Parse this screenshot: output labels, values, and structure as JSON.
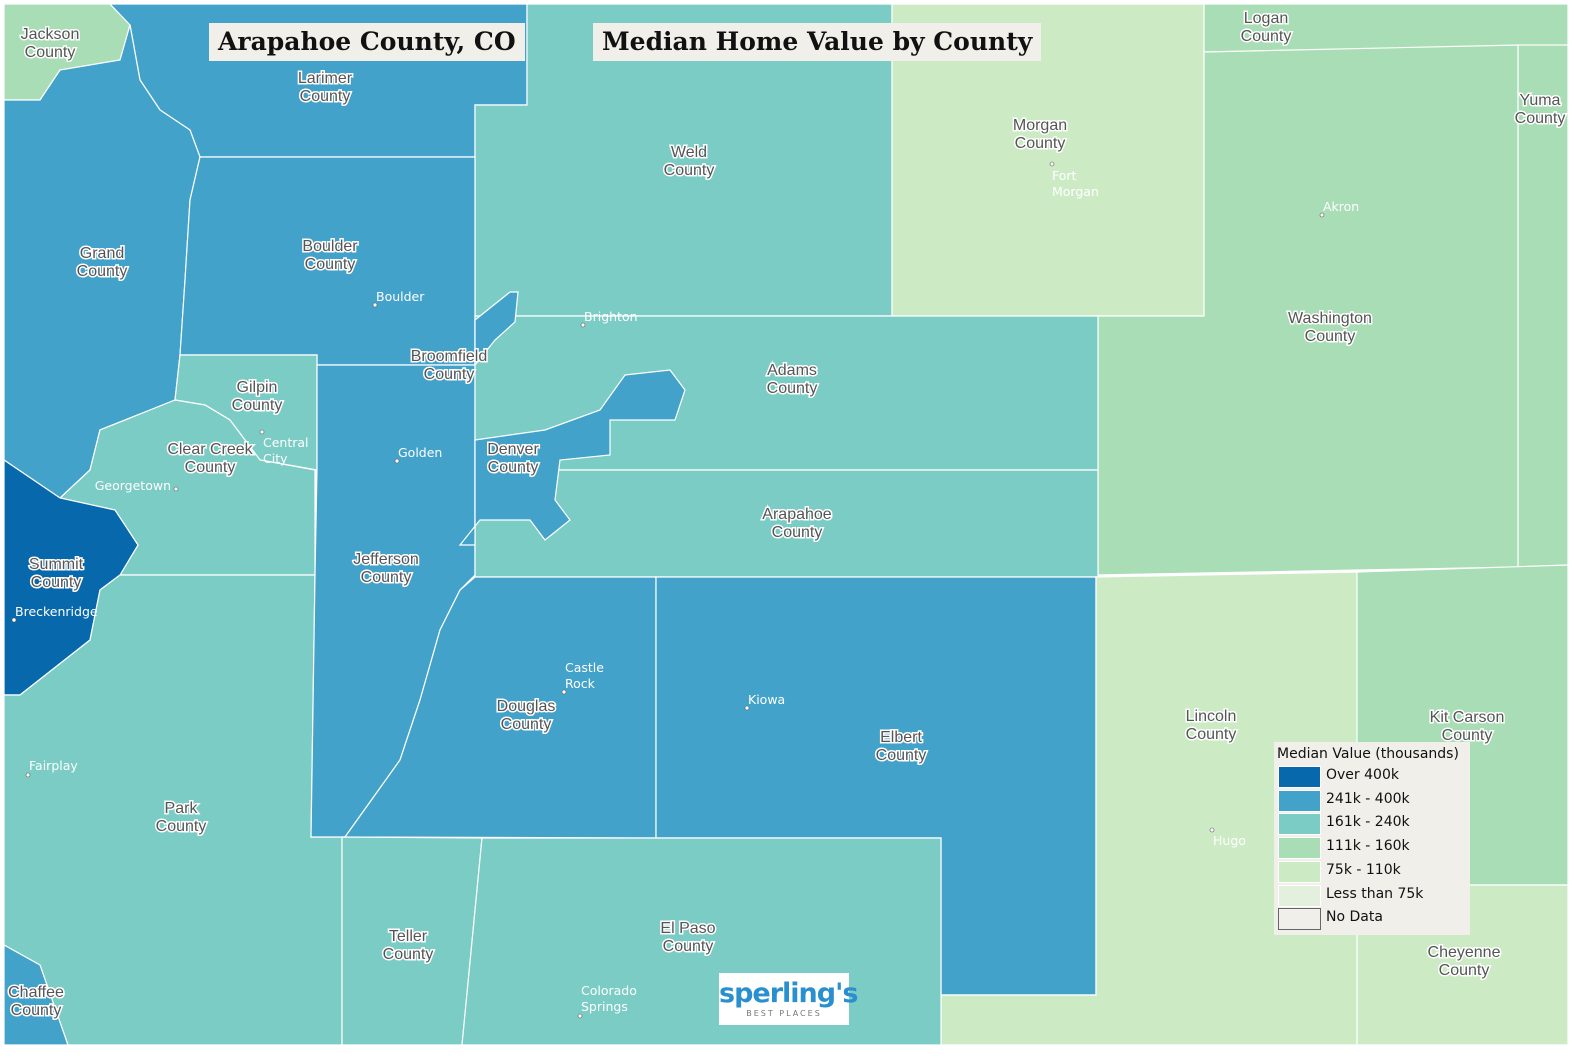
{
  "header": {
    "location_title": "Arapahoe County, CO",
    "map_title": "Median Home Value by County"
  },
  "legend": {
    "title": "Median Value (thousands)",
    "items": [
      {
        "label": "Over 400k",
        "color": "#0868ac"
      },
      {
        "label": "241k - 400k",
        "color": "#43a2ca"
      },
      {
        "label": "161k - 240k",
        "color": "#7bccc4"
      },
      {
        "label": "111k - 160k",
        "color": "#a8ddb5"
      },
      {
        "label": "75k - 110k",
        "color": "#ccebc5"
      },
      {
        "label": "Less than 75k",
        "color": "#e2f0dd"
      },
      {
        "label": "No Data",
        "color": "#f1efe9"
      }
    ]
  },
  "counties": [
    {
      "name": "Jackson County",
      "category": "111k - 160k"
    },
    {
      "name": "Larimer County",
      "category": "241k - 400k"
    },
    {
      "name": "Weld County",
      "category": "161k - 240k"
    },
    {
      "name": "Morgan County",
      "category": "75k - 110k"
    },
    {
      "name": "Logan County",
      "category": "111k - 160k"
    },
    {
      "name": "Yuma County",
      "category": "111k - 160k"
    },
    {
      "name": "Washington County",
      "category": "111k - 160k"
    },
    {
      "name": "Grand County",
      "category": "241k - 400k"
    },
    {
      "name": "Boulder County",
      "category": "241k - 400k"
    },
    {
      "name": "Gilpin County",
      "category": "161k - 240k"
    },
    {
      "name": "Clear Creek County",
      "category": "161k - 240k"
    },
    {
      "name": "Summit County",
      "category": "Over 400k"
    },
    {
      "name": "Park County",
      "category": "161k - 240k"
    },
    {
      "name": "Chaffee County",
      "category": "241k - 400k"
    },
    {
      "name": "Jefferson County",
      "category": "241k - 400k"
    },
    {
      "name": "Adams County",
      "category": "161k - 240k"
    },
    {
      "name": "Arapahoe County",
      "category": "161k - 240k"
    },
    {
      "name": "Denver County",
      "category": "241k - 400k"
    },
    {
      "name": "Broomfield County",
      "category": "241k - 400k"
    },
    {
      "name": "Douglas County",
      "category": "241k - 400k"
    },
    {
      "name": "Elbert County",
      "category": "241k - 400k"
    },
    {
      "name": "Lincoln County",
      "category": "75k - 110k"
    },
    {
      "name": "Kit Carson County",
      "category": "111k - 160k"
    },
    {
      "name": "Cheyenne County",
      "category": "75k - 110k"
    },
    {
      "name": "Teller County",
      "category": "161k - 240k"
    },
    {
      "name": "El Paso County",
      "category": "161k - 240k"
    }
  ],
  "cities": [
    "Fort Morgan",
    "Akron",
    "Boulder",
    "Brighton",
    "Golden",
    "Central City",
    "Georgetown",
    "Breckenridge",
    "Castle Rock",
    "Kiowa",
    "Fairplay",
    "Hugo",
    "Colorado Springs"
  ],
  "logo": {
    "brand": "sperling's",
    "tagline": "BEST PLACES"
  }
}
